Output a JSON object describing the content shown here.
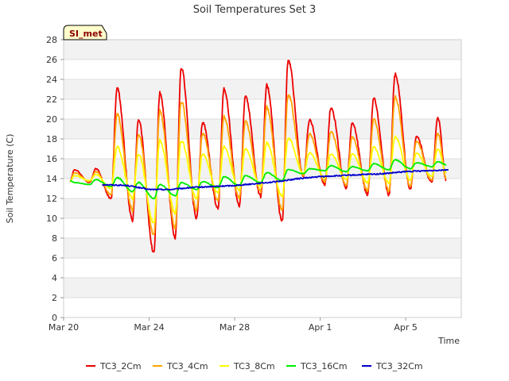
{
  "chart_data": {
    "type": "line",
    "title": "Soil Temperatures Set 3",
    "xlabel": "Time",
    "ylabel": "Soil Temperature (C)",
    "site_label": "SI_met",
    "ylim": [
      0,
      28
    ],
    "yticks": [
      0,
      2,
      4,
      6,
      8,
      10,
      12,
      14,
      16,
      18,
      20,
      22,
      24,
      26,
      28
    ],
    "xlim_days": [
      0,
      18.6
    ],
    "xticks": [
      {
        "label": "Mar 20",
        "day": 0
      },
      {
        "label": "Mar 24",
        "day": 4
      },
      {
        "label": "Mar 28",
        "day": 8
      },
      {
        "label": "Apr 1",
        "day": 12
      },
      {
        "label": "Apr 5",
        "day": 16
      }
    ],
    "grid": true,
    "legend_position": "bottom",
    "x_unit": "days since Mar 20",
    "daily_peaks_day": [
      0.5,
      1.5,
      2.5,
      3.5,
      4.5,
      5.5,
      6.5,
      7.5,
      8.5,
      9.5,
      10.5,
      11.5,
      12.5,
      13.5,
      14.5,
      15.5,
      16.5,
      17.5
    ],
    "series": [
      {
        "name": "TC3_2Cm",
        "color": "#ee0000",
        "start_day": 0.3,
        "start_value": 13.7,
        "daily_max": [
          14.9,
          15.0,
          23.1,
          20.0,
          22.6,
          25.2,
          19.7,
          23.0,
          22.3,
          23.4,
          26.0,
          19.9,
          21.2,
          19.6,
          22.1,
          24.5,
          18.3,
          20.2
        ],
        "daily_min": [
          13.2,
          13.6,
          12.0,
          9.8,
          6.5,
          8.0,
          10.0,
          11.0,
          11.2,
          12.2,
          9.7,
          14.2,
          13.4,
          13.0,
          12.4,
          12.4,
          13.0,
          13.6
        ],
        "end_day": 17.9,
        "end_value": 13.8
      },
      {
        "name": "TC3_4Cm",
        "color": "#ffa500",
        "start_day": 0.3,
        "start_value": 13.7,
        "daily_max": [
          14.6,
          14.7,
          20.5,
          18.5,
          20.8,
          21.8,
          18.6,
          20.2,
          19.8,
          21.2,
          22.5,
          18.5,
          18.8,
          18.2,
          20.0,
          22.2,
          17.8,
          18.6
        ],
        "daily_min": [
          13.3,
          13.7,
          12.4,
          10.8,
          8.3,
          9.0,
          10.8,
          11.8,
          12.0,
          12.7,
          10.8,
          14.3,
          13.7,
          13.3,
          12.8,
          12.8,
          13.3,
          13.8
        ],
        "end_day": 17.9,
        "end_value": 14.0
      },
      {
        "name": "TC3_8Cm",
        "color": "#ffff00",
        "start_day": 0.3,
        "start_value": 13.7,
        "daily_max": [
          14.3,
          14.4,
          17.2,
          16.5,
          17.8,
          17.8,
          16.5,
          17.2,
          17.0,
          17.6,
          18.1,
          16.6,
          16.5,
          16.5,
          17.2,
          18.2,
          16.6,
          17.0
        ],
        "daily_min": [
          13.5,
          13.8,
          13.0,
          12.0,
          9.5,
          10.5,
          12.0,
          12.6,
          12.8,
          13.2,
          12.2,
          14.5,
          14.1,
          13.9,
          13.6,
          13.6,
          13.9,
          14.2
        ],
        "end_day": 17.9,
        "end_value": 14.6
      },
      {
        "name": "TC3_16Cm",
        "color": "#00ee00",
        "start_day": 0.3,
        "start_value": 13.8,
        "daily_max": [
          13.6,
          13.9,
          14.1,
          13.6,
          13.4,
          13.6,
          13.7,
          14.2,
          14.3,
          14.6,
          14.9,
          15.0,
          15.3,
          15.2,
          15.5,
          15.9,
          15.6,
          15.7
        ],
        "daily_min": [
          13.3,
          13.4,
          13.2,
          12.7,
          12.0,
          12.3,
          12.9,
          13.1,
          13.3,
          13.6,
          13.8,
          14.5,
          14.8,
          14.7,
          14.8,
          14.9,
          15.0,
          15.2
        ],
        "end_day": 17.9,
        "end_value": 15.4
      },
      {
        "name": "TC3_32Cm",
        "color": "#0000cc",
        "start_day": 1.8,
        "points_day": [
          1.8,
          3.0,
          4.0,
          5.0,
          6.0,
          7.0,
          8.0,
          9.0,
          10.0,
          11.0,
          12.0,
          13.0,
          14.0,
          15.0,
          16.0,
          17.0,
          18.0
        ],
        "points_value": [
          13.4,
          13.3,
          12.9,
          12.9,
          13.1,
          13.2,
          13.3,
          13.5,
          13.7,
          14.0,
          14.2,
          14.3,
          14.4,
          14.5,
          14.7,
          14.8,
          14.9
        ]
      }
    ]
  }
}
